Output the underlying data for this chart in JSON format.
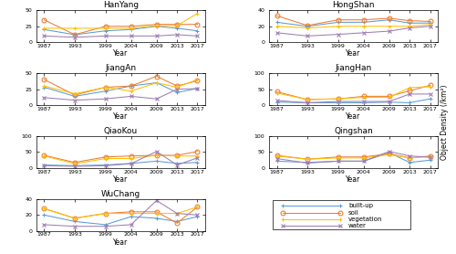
{
  "years": [
    1987,
    1993,
    1999,
    2004,
    2009,
    2013,
    2017
  ],
  "classes": [
    "built-up",
    "soil",
    "vegetation",
    "water"
  ],
  "colors": [
    "#5B9BD5",
    "#ED7D31",
    "#FFC000",
    "#9E7DB5"
  ],
  "markers": [
    "+",
    "o",
    "+",
    "x"
  ],
  "data": {
    "HanYang": {
      "built-up": [
        20,
        12,
        18,
        20,
        25,
        22,
        18
      ],
      "soil": [
        35,
        12,
        25,
        25,
        28,
        28,
        28
      ],
      "vegetation": [
        22,
        22,
        22,
        22,
        26,
        26,
        45
      ],
      "water": [
        10,
        8,
        10,
        10,
        10,
        12,
        10
      ]
    },
    "HongShan": {
      "built-up": [
        25,
        20,
        25,
        25,
        28,
        24,
        24
      ],
      "soil": [
        33,
        21,
        28,
        28,
        30,
        27,
        26
      ],
      "vegetation": [
        20,
        18,
        20,
        20,
        20,
        20,
        22
      ],
      "water": [
        12,
        8,
        10,
        12,
        14,
        18,
        20
      ]
    },
    "JiangAn": {
      "built-up": [
        28,
        14,
        22,
        30,
        35,
        20,
        26
      ],
      "soil": [
        40,
        16,
        28,
        30,
        45,
        30,
        38
      ],
      "vegetation": [
        30,
        18,
        28,
        22,
        35,
        28,
        40
      ],
      "water": [
        12,
        8,
        10,
        14,
        10,
        25,
        26
      ]
    },
    "JiangHan": {
      "built-up": [
        10,
        8,
        8,
        8,
        10,
        8,
        20
      ],
      "soil": [
        42,
        18,
        20,
        28,
        28,
        45,
        62
      ],
      "vegetation": [
        38,
        18,
        20,
        25,
        25,
        55,
        58
      ],
      "water": [
        15,
        8,
        12,
        12,
        12,
        35,
        35
      ]
    },
    "QiaoKou": {
      "built-up": [
        10,
        8,
        10,
        15,
        22,
        15,
        18
      ],
      "soil": [
        40,
        18,
        35,
        38,
        40,
        40,
        52
      ],
      "vegetation": [
        38,
        14,
        30,
        30,
        40,
        38,
        38
      ],
      "water": [
        8,
        6,
        8,
        14,
        52,
        10,
        32
      ]
    },
    "Qingshan": {
      "built-up": [
        22,
        18,
        22,
        22,
        48,
        18,
        25
      ],
      "soil": [
        40,
        28,
        35,
        35,
        45,
        32,
        38
      ],
      "vegetation": [
        38,
        28,
        32,
        32,
        42,
        32,
        36
      ],
      "water": [
        30,
        16,
        22,
        22,
        52,
        38,
        34
      ]
    },
    "WuChang": {
      "built-up": [
        20,
        12,
        8,
        18,
        16,
        12,
        18
      ],
      "soil": [
        28,
        16,
        22,
        24,
        24,
        10,
        30
      ],
      "vegetation": [
        28,
        16,
        22,
        22,
        22,
        22,
        30
      ],
      "water": [
        8,
        6,
        6,
        8,
        38,
        22,
        20
      ]
    }
  },
  "ylims": {
    "HanYang": [
      0,
      50
    ],
    "HongShan": [
      0,
      40
    ],
    "JiangAn": [
      0,
      50
    ],
    "JiangHan": [
      0,
      100
    ],
    "QiaoKou": [
      0,
      100
    ],
    "Qingshan": [
      0,
      100
    ],
    "WuChang": [
      0,
      40
    ]
  },
  "yticks": {
    "HanYang": [
      0,
      25,
      50
    ],
    "HongShan": [
      0,
      20,
      40
    ],
    "JiangAn": [
      0,
      25,
      50
    ],
    "JiangHan": [
      0,
      50,
      100
    ],
    "QiaoKou": [
      0,
      50,
      100
    ],
    "Qingshan": [
      0,
      50,
      100
    ],
    "WuChang": [
      0,
      20,
      40
    ]
  },
  "legend_labels": [
    "built-up",
    "soil",
    "vegetation",
    "water"
  ]
}
